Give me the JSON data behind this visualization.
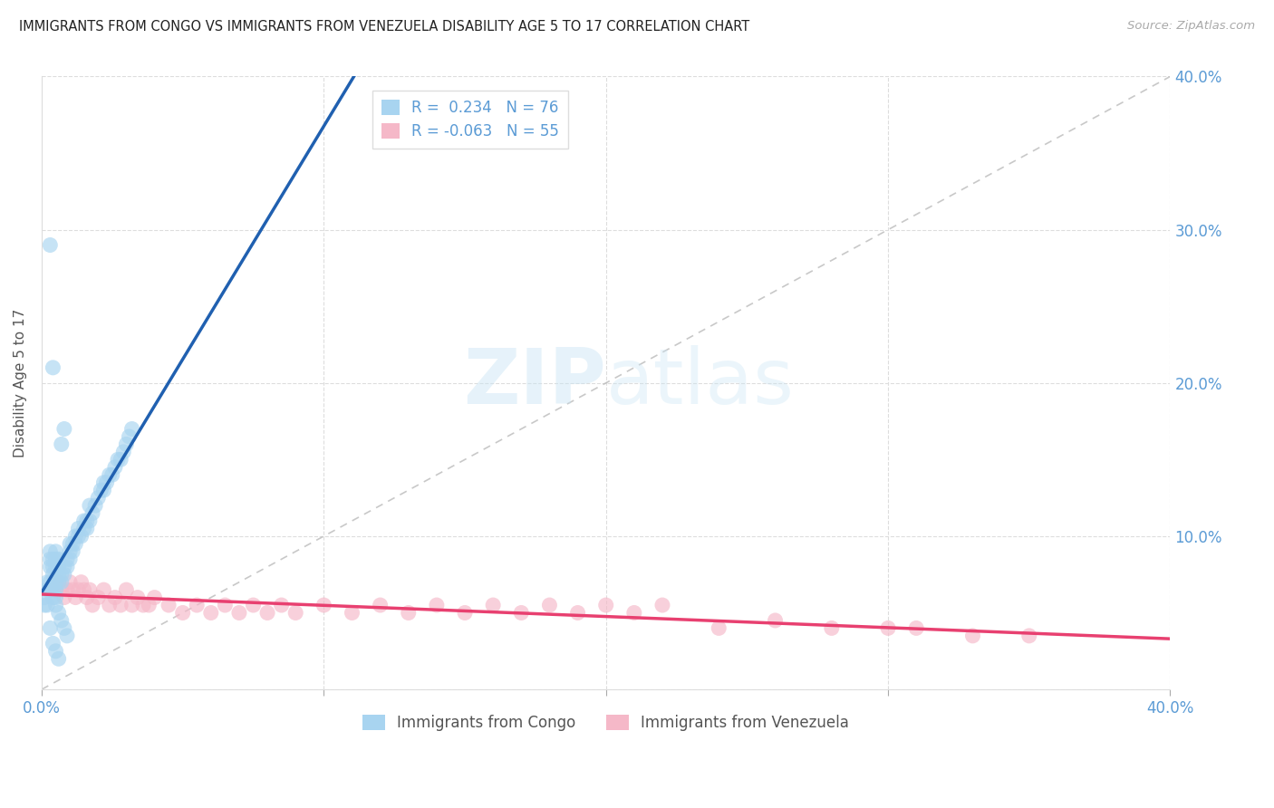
{
  "title": "IMMIGRANTS FROM CONGO VS IMMIGRANTS FROM VENEZUELA DISABILITY AGE 5 TO 17 CORRELATION CHART",
  "source": "Source: ZipAtlas.com",
  "ylabel": "Disability Age 5 to 17",
  "xlim": [
    0.0,
    0.4
  ],
  "ylim": [
    0.0,
    0.4
  ],
  "congo_color": "#A8D4F0",
  "venezuela_color": "#F5B8C8",
  "congo_line_color": "#2060B0",
  "venezuela_line_color": "#E84070",
  "diag_line_color": "#BBBBBB",
  "watermark_text": "ZIPatlas",
  "legend_R_congo": "R =  0.234",
  "legend_N_congo": "N = 76",
  "legend_R_venezuela": "R = -0.063",
  "legend_N_venezuela": "N = 55",
  "tick_color": "#5B9BD5",
  "congo_x": [
    0.001,
    0.001,
    0.002,
    0.002,
    0.002,
    0.003,
    0.003,
    0.003,
    0.003,
    0.003,
    0.004,
    0.004,
    0.004,
    0.004,
    0.004,
    0.005,
    0.005,
    0.005,
    0.005,
    0.005,
    0.005,
    0.006,
    0.006,
    0.006,
    0.006,
    0.007,
    0.007,
    0.007,
    0.008,
    0.008,
    0.008,
    0.009,
    0.009,
    0.01,
    0.01,
    0.01,
    0.011,
    0.011,
    0.012,
    0.012,
    0.013,
    0.013,
    0.014,
    0.015,
    0.015,
    0.016,
    0.016,
    0.017,
    0.017,
    0.018,
    0.019,
    0.02,
    0.021,
    0.022,
    0.022,
    0.023,
    0.024,
    0.025,
    0.026,
    0.027,
    0.028,
    0.029,
    0.03,
    0.031,
    0.032,
    0.003,
    0.004,
    0.005,
    0.006,
    0.007,
    0.008,
    0.009,
    0.003,
    0.004,
    0.005,
    0.006
  ],
  "congo_y": [
    0.055,
    0.06,
    0.065,
    0.07,
    0.055,
    0.065,
    0.07,
    0.08,
    0.085,
    0.09,
    0.06,
    0.065,
    0.075,
    0.08,
    0.085,
    0.06,
    0.065,
    0.07,
    0.08,
    0.085,
    0.09,
    0.07,
    0.075,
    0.08,
    0.085,
    0.07,
    0.075,
    0.16,
    0.075,
    0.08,
    0.17,
    0.08,
    0.085,
    0.085,
    0.09,
    0.095,
    0.09,
    0.095,
    0.095,
    0.1,
    0.1,
    0.105,
    0.1,
    0.105,
    0.11,
    0.105,
    0.11,
    0.11,
    0.12,
    0.115,
    0.12,
    0.125,
    0.13,
    0.13,
    0.135,
    0.135,
    0.14,
    0.14,
    0.145,
    0.15,
    0.15,
    0.155,
    0.16,
    0.165,
    0.17,
    0.29,
    0.21,
    0.055,
    0.05,
    0.045,
    0.04,
    0.035,
    0.04,
    0.03,
    0.025,
    0.02
  ],
  "venezuela_x": [
    0.005,
    0.006,
    0.007,
    0.008,
    0.009,
    0.01,
    0.011,
    0.012,
    0.013,
    0.014,
    0.015,
    0.016,
    0.017,
    0.018,
    0.02,
    0.022,
    0.024,
    0.026,
    0.028,
    0.03,
    0.032,
    0.034,
    0.036,
    0.038,
    0.04,
    0.045,
    0.05,
    0.055,
    0.06,
    0.065,
    0.07,
    0.075,
    0.08,
    0.085,
    0.09,
    0.1,
    0.11,
    0.12,
    0.13,
    0.14,
    0.15,
    0.16,
    0.17,
    0.18,
    0.19,
    0.2,
    0.21,
    0.22,
    0.24,
    0.26,
    0.28,
    0.3,
    0.31,
    0.33,
    0.35
  ],
  "venezuela_y": [
    0.065,
    0.07,
    0.065,
    0.06,
    0.065,
    0.07,
    0.065,
    0.06,
    0.065,
    0.07,
    0.065,
    0.06,
    0.065,
    0.055,
    0.06,
    0.065,
    0.055,
    0.06,
    0.055,
    0.065,
    0.055,
    0.06,
    0.055,
    0.055,
    0.06,
    0.055,
    0.05,
    0.055,
    0.05,
    0.055,
    0.05,
    0.055,
    0.05,
    0.055,
    0.05,
    0.055,
    0.05,
    0.055,
    0.05,
    0.055,
    0.05,
    0.055,
    0.05,
    0.055,
    0.05,
    0.055,
    0.05,
    0.055,
    0.04,
    0.045,
    0.04,
    0.04,
    0.04,
    0.035,
    0.035
  ]
}
